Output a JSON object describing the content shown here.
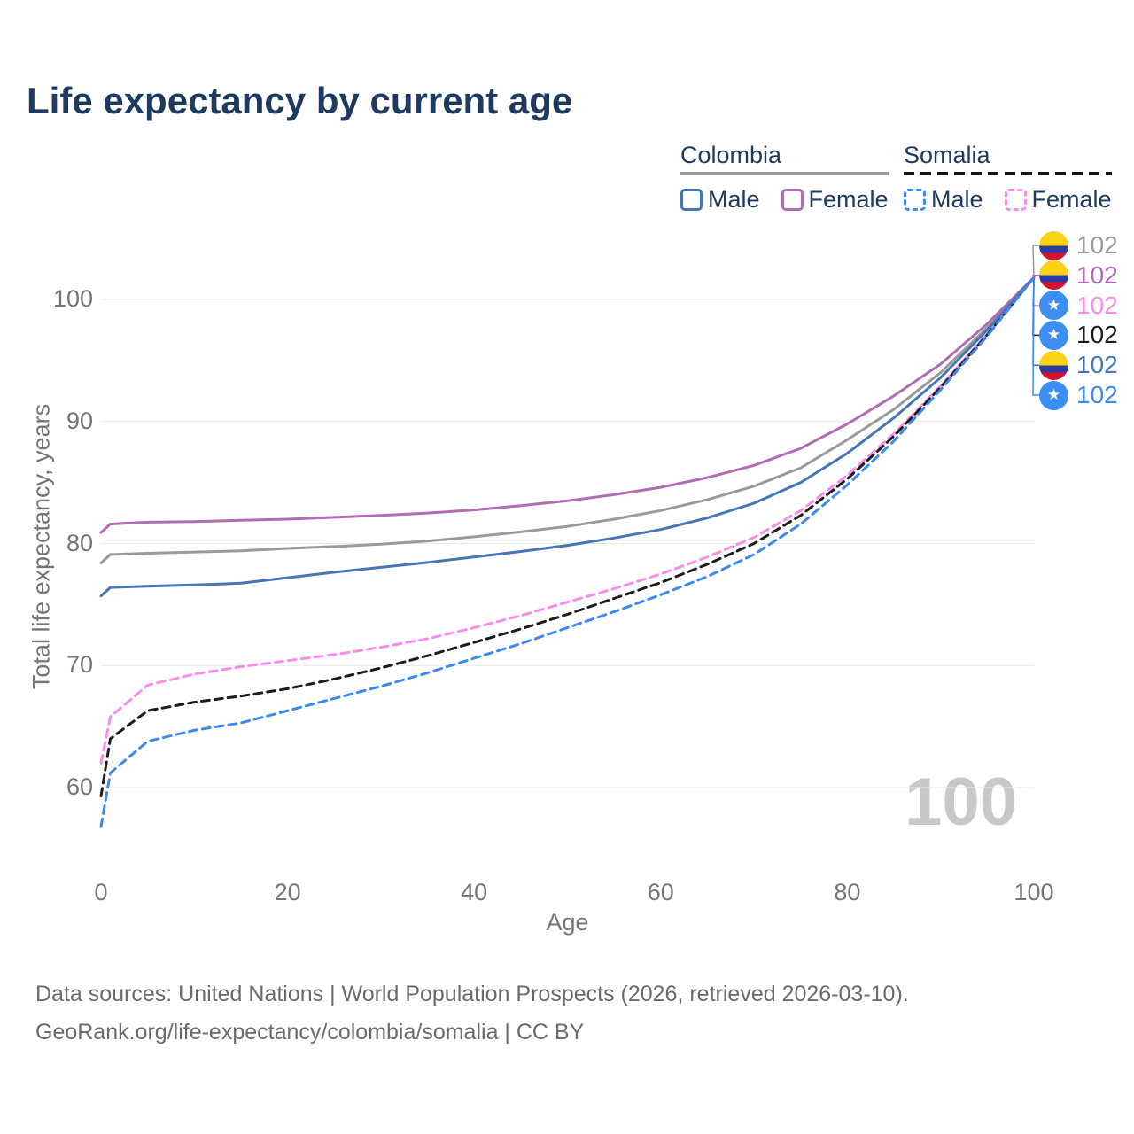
{
  "title": "Life expectancy by current age",
  "legend": {
    "groups": [
      {
        "label": "Colombia",
        "line_style": "solid",
        "underline_color": "#999999",
        "items": [
          {
            "label": "Male",
            "color": "#4576b5"
          },
          {
            "label": "Female",
            "color": "#af6eb2"
          }
        ]
      },
      {
        "label": "Somalia",
        "line_style": "dashed",
        "underline_color": "#1c1c1c",
        "items": [
          {
            "label": "Male",
            "color": "#3c89ef"
          },
          {
            "label": "Female",
            "color": "#fb8cec"
          }
        ]
      }
    ]
  },
  "chart_data": {
    "type": "line",
    "title": "Life expectancy by current age",
    "xlabel": "Age",
    "ylabel": "Total life expectancy, years",
    "xlim": [
      0,
      100
    ],
    "ylim": [
      56,
      103.5
    ],
    "x_ticks": [
      0,
      20,
      40,
      60,
      80,
      100
    ],
    "y_ticks": [
      60,
      70,
      80,
      90,
      100
    ],
    "grid": "horizontal-only",
    "legend_position": "top-right",
    "ages": [
      0,
      1,
      5,
      10,
      15,
      20,
      25,
      30,
      35,
      40,
      45,
      50,
      55,
      60,
      65,
      70,
      75,
      80,
      85,
      90,
      95,
      100
    ],
    "series": [
      {
        "name": "Colombia Both sexes",
        "country": "Colombia",
        "sex": "Both",
        "color": "#9a9a9a",
        "dashed": false,
        "end_label": "102",
        "values": [
          78.4,
          79.1,
          79.2,
          79.3,
          79.4,
          79.6,
          79.75,
          79.95,
          80.2,
          80.55,
          80.95,
          81.4,
          82.0,
          82.7,
          83.6,
          84.7,
          86.2,
          88.5,
          91.0,
          94.0,
          97.7,
          101.8
        ]
      },
      {
        "name": "Colombia Female",
        "country": "Colombia",
        "sex": "Female",
        "color": "#af6eb2",
        "dashed": false,
        "end_label": "102",
        "values": [
          80.9,
          81.6,
          81.75,
          81.8,
          81.9,
          82.0,
          82.15,
          82.3,
          82.5,
          82.75,
          83.1,
          83.5,
          84.0,
          84.6,
          85.4,
          86.4,
          87.8,
          89.8,
          92.1,
          94.7,
          98.0,
          101.8
        ]
      },
      {
        "name": "Somalia Female",
        "country": "Somalia",
        "sex": "Female",
        "color": "#fb8cec",
        "dashed": true,
        "end_label": "102",
        "values": [
          62.0,
          65.8,
          68.4,
          69.3,
          69.9,
          70.4,
          70.9,
          71.5,
          72.2,
          73.1,
          74.1,
          75.2,
          76.3,
          77.5,
          78.9,
          80.5,
          82.7,
          85.6,
          89.0,
          92.9,
          97.2,
          101.8
        ]
      },
      {
        "name": "Somalia Both sexes",
        "country": "Somalia",
        "sex": "Both",
        "color": "#1c1c1c",
        "dashed": true,
        "end_label": "102",
        "values": [
          59.3,
          64.0,
          66.3,
          67.0,
          67.5,
          68.1,
          68.9,
          69.8,
          70.8,
          71.9,
          73.0,
          74.2,
          75.5,
          76.8,
          78.3,
          80.0,
          82.3,
          85.3,
          88.8,
          92.8,
          97.1,
          101.8
        ]
      },
      {
        "name": "Colombia Male",
        "country": "Colombia",
        "sex": "Male",
        "color": "#4576b5",
        "dashed": false,
        "end_label": "102",
        "values": [
          75.7,
          76.4,
          76.5,
          76.6,
          76.75,
          77.2,
          77.65,
          78.05,
          78.45,
          78.9,
          79.35,
          79.85,
          80.45,
          81.15,
          82.1,
          83.3,
          85.0,
          87.4,
          90.3,
          93.6,
          97.5,
          101.8
        ]
      },
      {
        "name": "Somalia Male",
        "country": "Somalia",
        "sex": "Male",
        "color": "#3c89ef",
        "dashed": true,
        "end_label": "102",
        "values": [
          56.8,
          61.2,
          63.8,
          64.7,
          65.3,
          66.3,
          67.3,
          68.3,
          69.4,
          70.6,
          71.8,
          73.1,
          74.4,
          75.8,
          77.3,
          79.1,
          81.6,
          84.8,
          88.4,
          92.6,
          97.0,
          101.8
        ]
      }
    ]
  },
  "annotations": {
    "watermark": "100",
    "star_icon": "★"
  },
  "footer": {
    "line1": "Data sources: United Nations | World Population Prospects (2026, retrieved 2026-03-10).",
    "line2": "GeoRank.org/life-expectancy/colombia/somalia | CC BY"
  }
}
